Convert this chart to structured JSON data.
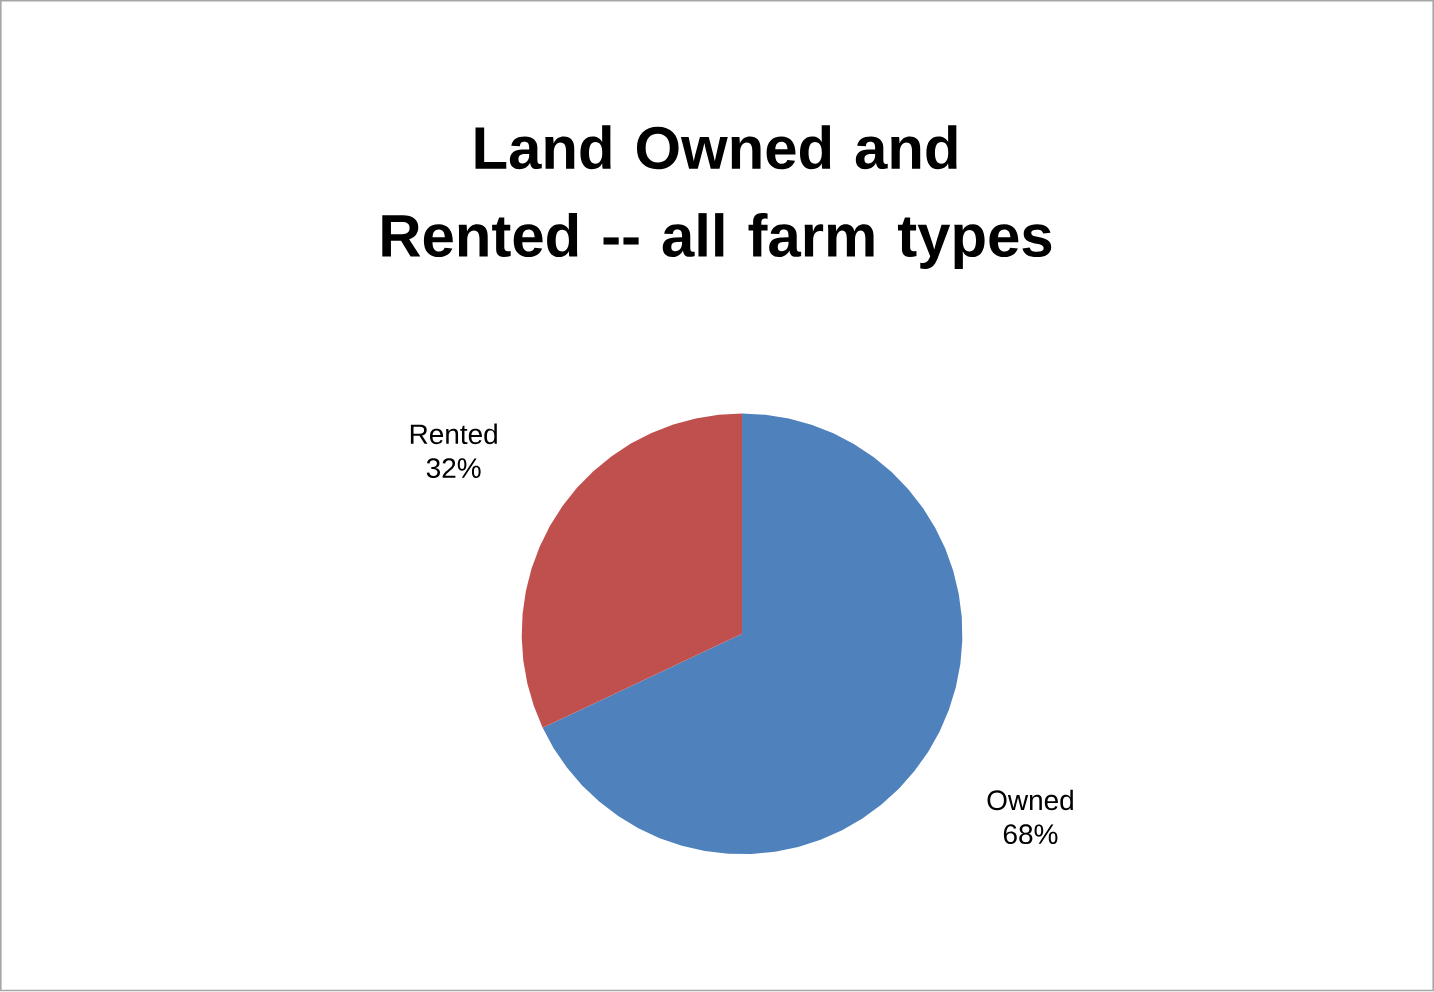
{
  "chart_data": {
    "type": "pie",
    "title": "Land Owned and Rented -- all farm types",
    "categories": [
      "Owned",
      "Rented"
    ],
    "values": [
      68,
      32
    ],
    "colors": [
      "#4f81bd",
      "#c0504d"
    ],
    "value_labels": [
      "68%",
      "32%"
    ]
  }
}
